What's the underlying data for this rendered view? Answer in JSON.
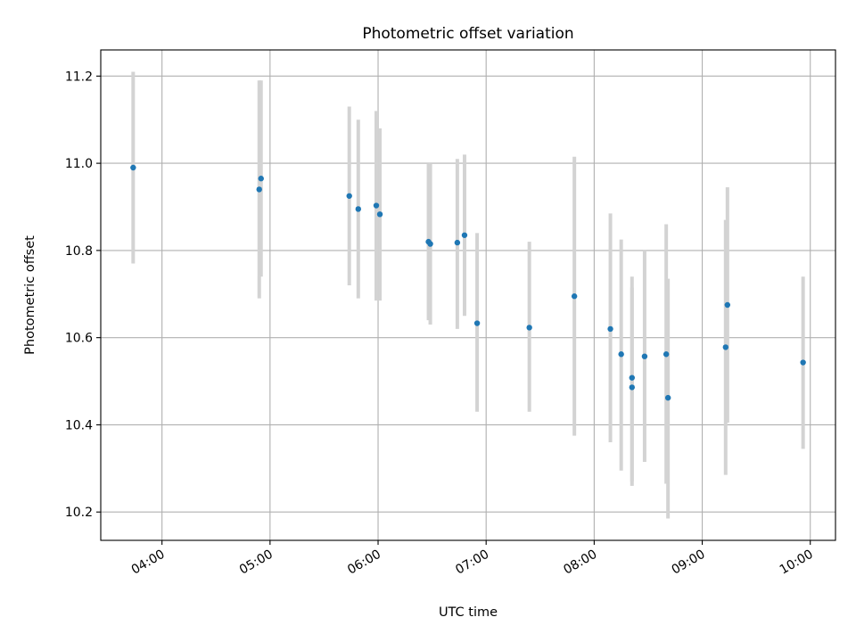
{
  "chart_data": {
    "type": "scatter",
    "title": "Photometric offset variation",
    "xlabel": "UTC time",
    "ylabel": "Photometric offset",
    "xlim": [
      "03:26",
      "10:14"
    ],
    "ylim": [
      10.135,
      11.26
    ],
    "x_ticks": [
      "04:00",
      "05:00",
      "06:00",
      "07:00",
      "08:00",
      "09:00",
      "10:00"
    ],
    "y_ticks": [
      10.2,
      10.4,
      10.6,
      10.8,
      11.0,
      11.2
    ],
    "y_tick_labels": [
      "10.2",
      "10.4",
      "10.6",
      "10.8",
      "11.0",
      "11.2"
    ],
    "grid": true,
    "point_color": "#1f77b4",
    "errorbar_color": "#d3d3d3",
    "points": [
      {
        "x": "03:44",
        "y": 10.99,
        "low": 10.77,
        "high": 11.21
      },
      {
        "x": "04:54",
        "y": 10.94,
        "low": 10.69,
        "high": 11.19
      },
      {
        "x": "04:55",
        "y": 10.965,
        "low": 10.74,
        "high": 11.19
      },
      {
        "x": "05:44",
        "y": 10.925,
        "low": 10.72,
        "high": 11.13
      },
      {
        "x": "05:49",
        "y": 10.895,
        "low": 10.69,
        "high": 11.1
      },
      {
        "x": "05:59",
        "y": 10.903,
        "low": 10.685,
        "high": 11.12
      },
      {
        "x": "06:01",
        "y": 10.883,
        "low": 10.685,
        "high": 11.08
      },
      {
        "x": "06:28",
        "y": 10.82,
        "low": 10.64,
        "high": 11.0
      },
      {
        "x": "06:29",
        "y": 10.815,
        "low": 10.63,
        "high": 11.0
      },
      {
        "x": "06:44",
        "y": 10.818,
        "low": 10.62,
        "high": 11.01
      },
      {
        "x": "06:48",
        "y": 10.835,
        "low": 10.65,
        "high": 11.02
      },
      {
        "x": "06:55",
        "y": 10.633,
        "low": 10.43,
        "high": 10.84
      },
      {
        "x": "07:24",
        "y": 10.623,
        "low": 10.43,
        "high": 10.82
      },
      {
        "x": "07:49",
        "y": 10.695,
        "low": 10.375,
        "high": 11.015
      },
      {
        "x": "08:09",
        "y": 10.62,
        "low": 10.36,
        "high": 10.885
      },
      {
        "x": "08:15",
        "y": 10.562,
        "low": 10.295,
        "high": 10.825
      },
      {
        "x": "08:21",
        "y": 10.508,
        "low": 10.27,
        "high": 10.74
      },
      {
        "x": "08:21",
        "y": 10.486,
        "low": 10.26,
        "high": 10.715
      },
      {
        "x": "08:28",
        "y": 10.557,
        "low": 10.315,
        "high": 10.8
      },
      {
        "x": "08:40",
        "y": 10.562,
        "low": 10.265,
        "high": 10.86
      },
      {
        "x": "08:41",
        "y": 10.462,
        "low": 10.185,
        "high": 10.735
      },
      {
        "x": "09:13",
        "y": 10.578,
        "low": 10.285,
        "high": 10.87
      },
      {
        "x": "09:14",
        "y": 10.675,
        "low": 10.405,
        "high": 10.945
      },
      {
        "x": "09:56",
        "y": 10.543,
        "low": 10.345,
        "high": 10.74
      }
    ]
  }
}
